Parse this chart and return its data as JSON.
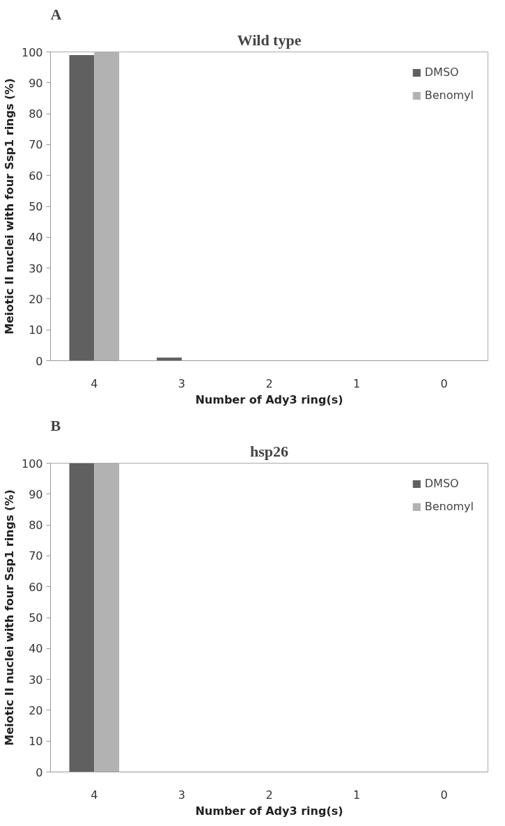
{
  "chart_data": [
    {
      "type": "bar",
      "title": "Wild type",
      "xlabel": "Number of Ady3 ring(s)",
      "ylabel": "Meiotic II nuclei with four Ssp1 rings (%)",
      "annotations": [
        "A"
      ],
      "categories": [
        "4",
        "3",
        "2",
        "1",
        "0"
      ],
      "ylim": [
        0,
        100
      ],
      "yticks": [
        0,
        10,
        20,
        30,
        40,
        50,
        60,
        70,
        80,
        90,
        100
      ],
      "grid": false,
      "legend": "top right",
      "series": [
        {
          "name": "DMSO",
          "color": "#606060",
          "values": [
            99,
            1,
            0,
            0,
            0
          ]
        },
        {
          "name": "Benomyl",
          "color": "#b2b2b2",
          "values": [
            100,
            0,
            0,
            0,
            0
          ]
        }
      ]
    },
    {
      "type": "bar",
      "title": "hsp26",
      "xlabel": "Number of Ady3 ring(s)",
      "ylabel": "Meiotic II nuclei with four Ssp1 rings (%)",
      "annotations": [
        "B"
      ],
      "categories": [
        "4",
        "3",
        "2",
        "1",
        "0"
      ],
      "ylim": [
        0,
        100
      ],
      "yticks": [
        0,
        10,
        20,
        30,
        40,
        50,
        60,
        70,
        80,
        90,
        100
      ],
      "grid": false,
      "legend": "top right",
      "series": [
        {
          "name": "DMSO",
          "color": "#606060",
          "values": [
            100,
            0,
            0,
            0,
            0
          ]
        },
        {
          "name": "Benomyl",
          "color": "#b2b2b2",
          "values": [
            100,
            0,
            0,
            0,
            0
          ]
        }
      ]
    }
  ]
}
